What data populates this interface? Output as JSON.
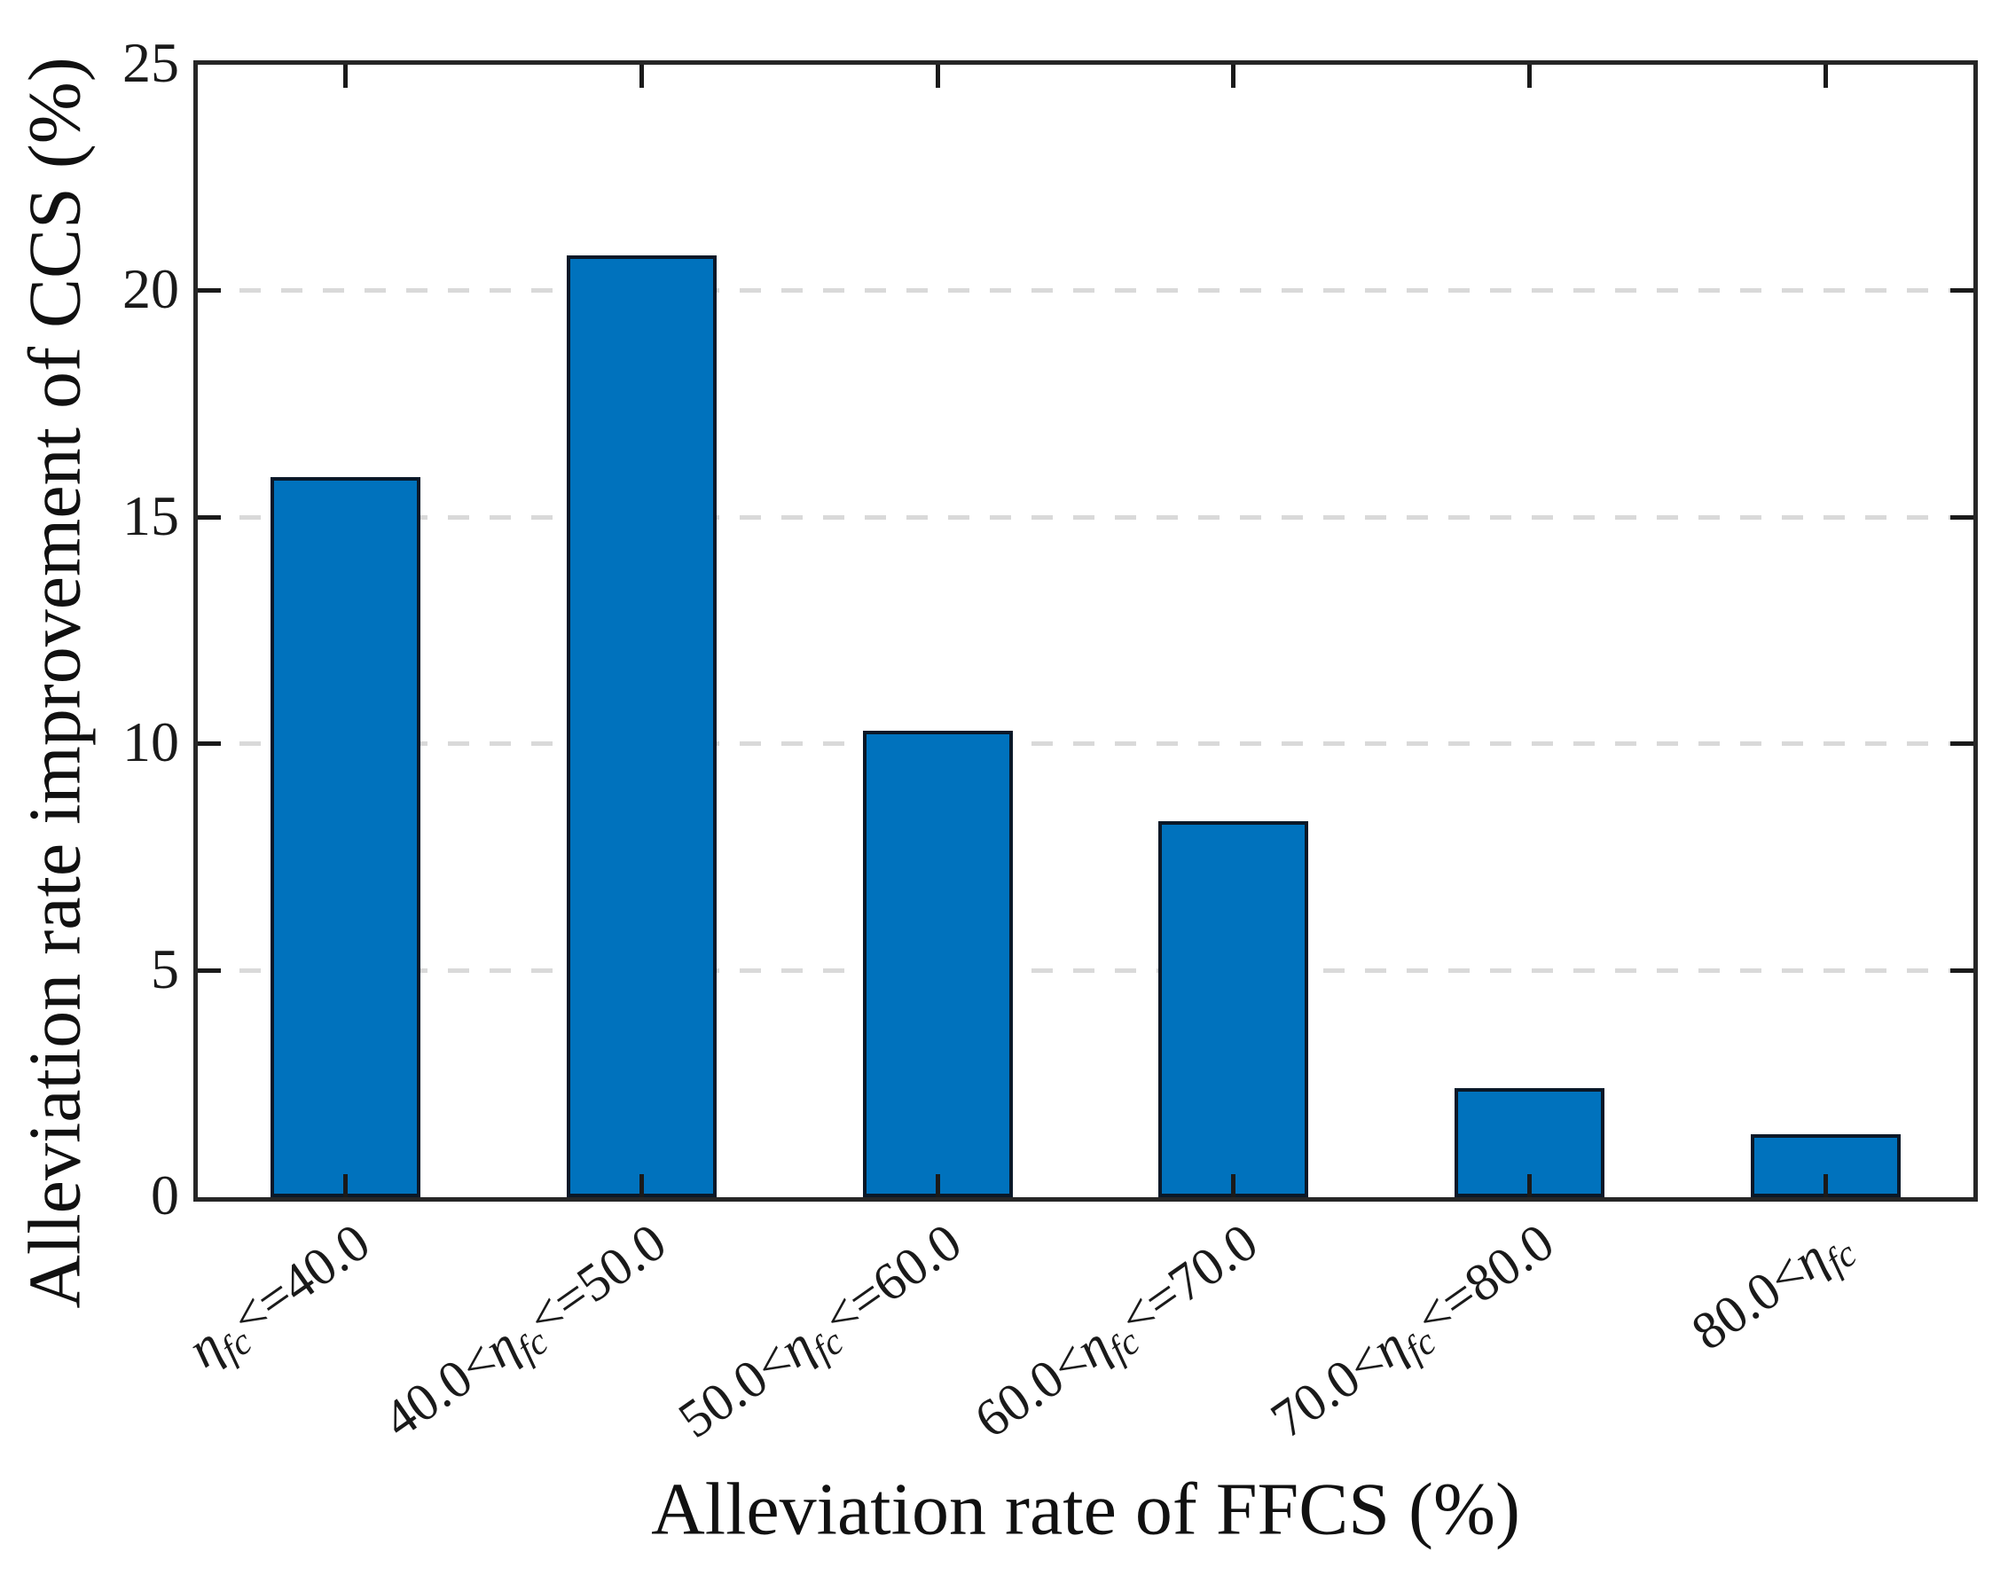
{
  "figure": {
    "xlabel": "Alleviation rate of FFCS (%)",
    "ylabel": "Alleviation rate improvement of CCS (%)"
  },
  "chart_data": {
    "type": "bar",
    "title": "",
    "xlabel": "Alleviation rate of FFCS (%)",
    "ylabel": "Alleviation rate improvement of CCS (%)",
    "categories": [
      "ηfc<=40.0",
      "40.0<ηfc<=50.0",
      "50.0<ηfc<=60.0",
      "60.0<ηfc<=70.0",
      "70.0<ηfc<=80.0",
      "80.0<ηfc"
    ],
    "category_parts": [
      {
        "pre": "",
        "sym": "η",
        "sub": "fc",
        "post": "<=40.0"
      },
      {
        "pre": "40.0<",
        "sym": "η",
        "sub": "fc",
        "post": "<=50.0"
      },
      {
        "pre": "50.0<",
        "sym": "η",
        "sub": "fc",
        "post": "<=60.0"
      },
      {
        "pre": "60.0<",
        "sym": "η",
        "sub": "fc",
        "post": "<=70.0"
      },
      {
        "pre": "70.0<",
        "sym": "η",
        "sub": "fc",
        "post": "<=80.0"
      },
      {
        "pre": "80.0<",
        "sym": "η",
        "sub": "fc",
        "post": ""
      }
    ],
    "values": [
      15.9,
      20.8,
      10.3,
      8.3,
      2.4,
      1.4
    ],
    "ylim": [
      0,
      25
    ],
    "yticks": [
      0,
      5,
      10,
      15,
      20,
      25
    ],
    "grid": "horizontal dashed",
    "legend": "none",
    "bar_fill": "#0072BD",
    "bar_edge": "#0a1828",
    "grid_color": "#d9d9d9",
    "axis_color": "#262626",
    "text_color": "#1a1a1a"
  }
}
